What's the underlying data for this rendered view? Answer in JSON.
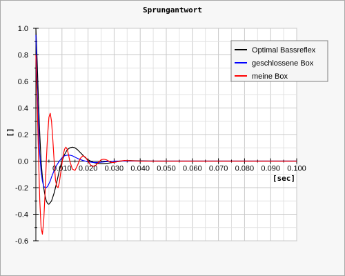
{
  "chart_data": {
    "type": "line",
    "title": "Sprungantwort",
    "xlabel": "[sec]",
    "ylabel": "[]",
    "xlim": [
      0,
      0.1
    ],
    "ylim": [
      -0.6,
      1.0
    ],
    "xticks": [
      "0.010",
      "0.020",
      "0.030",
      "0.040",
      "0.050",
      "0.060",
      "0.070",
      "0.080",
      "0.090",
      "0.100"
    ],
    "yticks": [
      "1.0",
      "0.8",
      "0.6",
      "0.4",
      "0.2",
      "0.0",
      "-0.2",
      "-0.4",
      "-0.6"
    ],
    "grid": true,
    "legend_position": "top-right",
    "series": [
      {
        "name": "Optimal Bassreflex",
        "color": "#000000",
        "x": [
          0,
          0.0005,
          0.001,
          0.0015,
          0.002,
          0.0025,
          0.003,
          0.0035,
          0.004,
          0.0045,
          0.005,
          0.006,
          0.007,
          0.008,
          0.009,
          0.01,
          0.011,
          0.012,
          0.013,
          0.014,
          0.015,
          0.016,
          0.017,
          0.018,
          0.019,
          0.02,
          0.022,
          0.024,
          0.026,
          0.028,
          0.03,
          0.032,
          0.034,
          0.036,
          0.038,
          0.04,
          0.045,
          0.05,
          0.06,
          0.07,
          0.08,
          0.09,
          0.1
        ],
        "y": [
          1.0,
          0.75,
          0.45,
          0.2,
          0.0,
          -0.12,
          -0.2,
          -0.26,
          -0.3,
          -0.32,
          -0.325,
          -0.3,
          -0.24,
          -0.16,
          -0.07,
          0.0,
          0.05,
          0.085,
          0.1,
          0.105,
          0.1,
          0.085,
          0.065,
          0.045,
          0.025,
          0.01,
          -0.01,
          -0.02,
          -0.02,
          -0.015,
          -0.008,
          -0.002,
          0.002,
          0.004,
          0.003,
          0.002,
          0.0,
          0.0,
          0.0,
          0.0,
          0.0,
          0.0,
          0.0
        ]
      },
      {
        "name": "geschlossene Box",
        "color": "#0000ff",
        "x": [
          0,
          0.0005,
          0.001,
          0.0015,
          0.002,
          0.0025,
          0.003,
          0.0035,
          0.004,
          0.0045,
          0.005,
          0.0055,
          0.006,
          0.007,
          0.008,
          0.009,
          0.01,
          0.011,
          0.012,
          0.013,
          0.014,
          0.015,
          0.016,
          0.018,
          0.02,
          0.022,
          0.024,
          0.026,
          0.028,
          0.03,
          0.035,
          0.04,
          0.05,
          0.06,
          0.08,
          0.1
        ],
        "y": [
          0.95,
          0.55,
          0.25,
          0.05,
          -0.08,
          -0.15,
          -0.19,
          -0.2,
          -0.2,
          -0.19,
          -0.17,
          -0.15,
          -0.12,
          -0.07,
          -0.03,
          0.0,
          0.025,
          0.04,
          0.045,
          0.045,
          0.04,
          0.03,
          0.02,
          0.005,
          -0.005,
          -0.01,
          -0.01,
          -0.006,
          -0.003,
          0.0,
          0.001,
          0.0,
          0.0,
          0.0,
          0.0,
          0.0
        ]
      },
      {
        "name": "meine Box",
        "color": "#ff0000",
        "x": [
          0,
          0.0005,
          0.001,
          0.0015,
          0.002,
          0.0025,
          0.003,
          0.0035,
          0.004,
          0.0045,
          0.005,
          0.0055,
          0.006,
          0.0065,
          0.007,
          0.0075,
          0.008,
          0.0085,
          0.009,
          0.0095,
          0.01,
          0.0105,
          0.011,
          0.0115,
          0.012,
          0.0125,
          0.013,
          0.014,
          0.015,
          0.016,
          0.017,
          0.018,
          0.019,
          0.02,
          0.021,
          0.022,
          0.023,
          0.024,
          0.025,
          0.026,
          0.027,
          0.028,
          0.029,
          0.03,
          0.032,
          0.034,
          0.036,
          0.04,
          0.05,
          0.06,
          0.08,
          0.1
        ],
        "y": [
          0.8,
          0.45,
          0.05,
          -0.3,
          -0.5,
          -0.55,
          -0.45,
          -0.25,
          0.0,
          0.2,
          0.33,
          0.36,
          0.3,
          0.16,
          0.0,
          -0.14,
          -0.19,
          -0.2,
          -0.16,
          -0.09,
          -0.02,
          0.05,
          0.09,
          0.105,
          0.09,
          0.05,
          0.0,
          -0.06,
          -0.07,
          -0.03,
          0.02,
          0.04,
          0.03,
          0.0,
          -0.03,
          -0.04,
          -0.03,
          -0.01,
          0.01,
          0.015,
          0.01,
          0.0,
          -0.01,
          -0.01,
          0.0,
          0.005,
          0.003,
          0.0,
          0.0,
          0.0,
          0.0,
          0.0
        ]
      }
    ]
  }
}
